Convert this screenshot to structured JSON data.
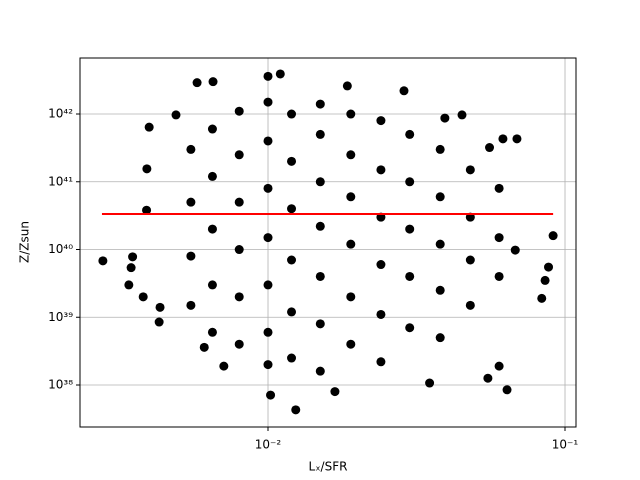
{
  "chart_data": {
    "type": "scatter",
    "xlabel": "Lₓ/SFR",
    "ylabel": "Z/Zsun",
    "xscale": "log",
    "yscale": "log",
    "grid": true,
    "color": "#000000",
    "xlim": [
      0.002328,
      0.1089
    ],
    "ylim": [
      2.4e+37,
      6.71e+42
    ],
    "xticks": [
      {
        "value": 0.01,
        "label": "10⁻²"
      },
      {
        "value": 0.1,
        "label": "10⁻¹"
      }
    ],
    "yticks": [
      {
        "value": 1e+38,
        "label": "10³⁸"
      },
      {
        "value": 1e+39,
        "label": "10³⁹"
      },
      {
        "value": 1e+40,
        "label": "10⁴⁰"
      },
      {
        "value": 1e+41,
        "label": "10⁴¹"
      },
      {
        "value": 1e+42,
        "label": "10⁴²"
      }
    ],
    "x": [
      0.00278,
      0.01,
      0.011,
      0.00653,
      0.00577,
      0.0185,
      0.0287,
      0.045,
      0.00398,
      0.0102,
      0.0124,
      0.0638,
      0.0912,
      0.088,
      0.0857,
      0.0835,
      0.0689,
      0.0618,
      0.00346,
      0.0035,
      0.0034,
      0.0038,
      0.00433,
      0.0043,
      0.035,
      0.0168,
      0.0071,
      0.0061,
      0.055,
      0.06,
      0.068,
      0.0557,
      0.0394,
      0.0049,
      0.00391,
      0.0039,
      0.0055,
      0.0055,
      0.0055,
      0.0055,
      0.0065,
      0.0065,
      0.0065,
      0.0065,
      0.0065,
      0.008,
      0.008,
      0.008,
      0.008,
      0.008,
      0.008,
      0.01,
      0.01,
      0.01,
      0.01,
      0.01,
      0.01,
      0.01,
      0.012,
      0.012,
      0.012,
      0.012,
      0.012,
      0.012,
      0.015,
      0.015,
      0.015,
      0.015,
      0.015,
      0.015,
      0.015,
      0.019,
      0.019,
      0.019,
      0.019,
      0.019,
      0.019,
      0.024,
      0.024,
      0.024,
      0.024,
      0.024,
      0.024,
      0.03,
      0.03,
      0.03,
      0.03,
      0.03,
      0.038,
      0.038,
      0.038,
      0.038,
      0.038,
      0.048,
      0.048,
      0.048,
      0.048,
      0.06,
      0.06,
      0.06
    ],
    "values": [
      6.8e+39,
      3.6e+42,
      3.9e+42,
      3e+42,
      2.9e+42,
      2.6e+42,
      2.2e+42,
      9.7e+41,
      6.4e+41,
      7.1e+37,
      4.3e+37,
      8.5e+37,
      1.6e+40,
      5.5e+39,
      3.5e+39,
      1.9e+39,
      4.3e+41,
      4.3e+41,
      5.4e+39,
      7.8e+39,
      3e+39,
      2e+39,
      1.4e+39,
      8.5e+38,
      1.07e+38,
      8e+37,
      1.9e+38,
      3.6e+38,
      1.26e+38,
      1.9e+38,
      9.8e+39,
      3.2e+41,
      8.7e+41,
      9.7e+41,
      1.55e+41,
      3.8e+40,
      3e+41,
      5e+40,
      8e+39,
      1.5e+39,
      6e+41,
      1.2e+41,
      2e+40,
      3e+39,
      6e+38,
      1.1e+42,
      2.5e+41,
      5e+40,
      1e+40,
      2e+39,
      4e+38,
      1.5e+42,
      4e+41,
      8e+40,
      1.5e+40,
      3e+39,
      6e+38,
      2e+38,
      1e+42,
      2e+41,
      4e+40,
      7e+39,
      1.2e+39,
      2.5e+38,
      1.4e+42,
      5e+41,
      1e+41,
      2.2e+40,
      4e+39,
      8e+38,
      1.6e+38,
      1e+42,
      2.5e+41,
      6e+40,
      1.2e+40,
      2e+39,
      4e+38,
      8e+41,
      1.5e+41,
      3e+40,
      6e+39,
      1.1e+39,
      2.2e+38,
      5e+41,
      1e+41,
      2e+40,
      4e+39,
      7e+38,
      3e+41,
      6e+40,
      1.2e+40,
      2.5e+39,
      5e+38,
      1.5e+41,
      3e+40,
      7e+39,
      1.5e+39,
      8e+40,
      1.5e+40,
      4e+39
    ],
    "line": {
      "color": "#ff0000",
      "x": [
        0.00276,
        0.0912
      ],
      "values": [
        3.34e+40,
        3.34e+40
      ]
    }
  }
}
